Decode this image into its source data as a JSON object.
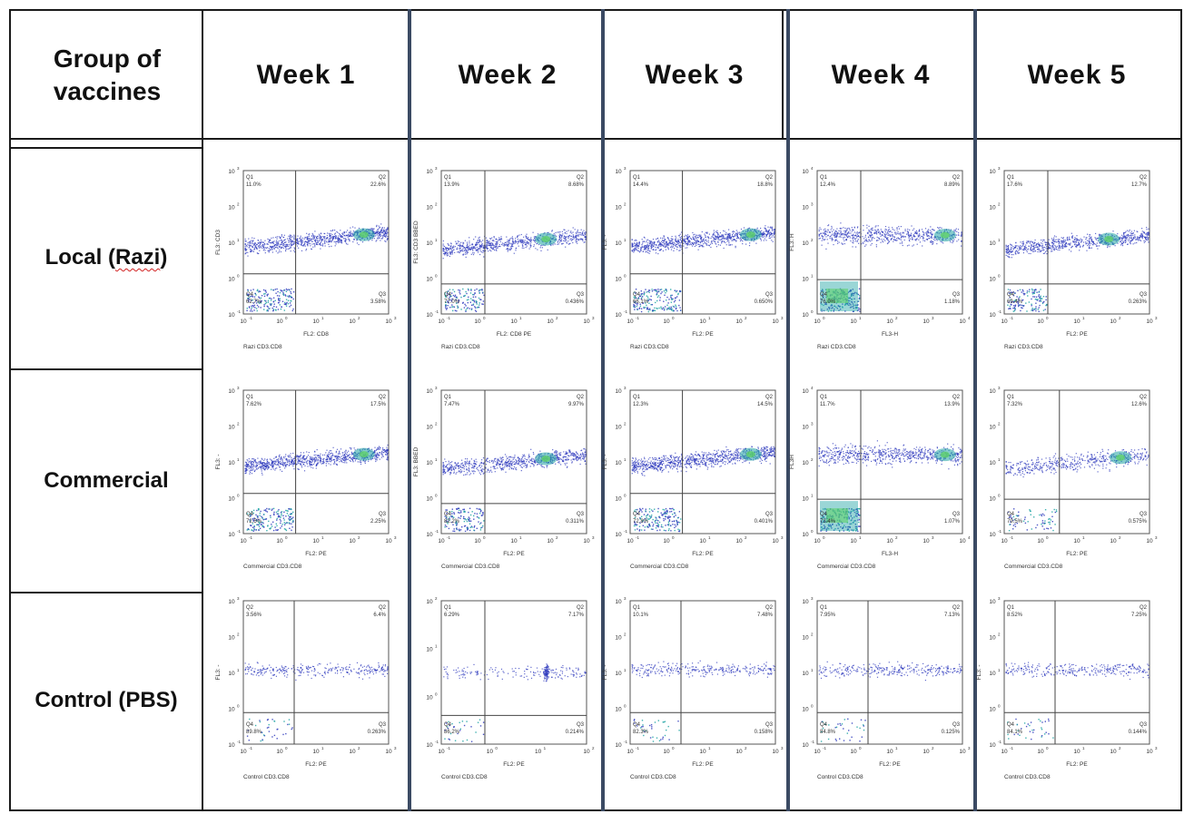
{
  "table": {
    "header": {
      "group_line1": "Group of",
      "group_line2": "vaccines",
      "weeks": [
        "Week 1",
        "Week  2",
        "Week 3",
        "Week  4",
        "Week  5"
      ]
    },
    "rows": [
      {
        "label_prefix": "Local (",
        "label_squiggle": "Razi",
        "label_suffix": ")"
      },
      {
        "label_prefix": "Commercial",
        "label_squiggle": "",
        "label_suffix": ""
      },
      {
        "label_prefix": "Control (PBS)",
        "label_squiggle": "",
        "label_suffix": ""
      }
    ]
  },
  "plots": [
    [
      {
        "q": [
          "Q1",
          "11.0%",
          "Q2",
          "22.6%",
          "Q3",
          "3.58%",
          "Q4",
          "62.7%"
        ],
        "ylabel": "FL3: CD3",
        "xlabel": "FL2: CD8",
        "sample": "Razi CD3.CD8",
        "dec": [
          -1,
          3
        ],
        "profile": "strong"
      },
      {
        "q": [
          "Q1",
          "13.9%",
          "Q2",
          "8.68%",
          "Q3",
          "0.436%",
          "Q4",
          "77.0%"
        ],
        "ylabel": "FL3: CD3 BBED",
        "xlabel": "FL2: CD8 PE",
        "sample": "Razi CD3.CD8",
        "dec": [
          -1,
          3
        ],
        "profile": "medium"
      },
      {
        "q": [
          "Q1",
          "14.4%",
          "Q2",
          "18.8%",
          "Q3",
          "0.650%",
          "Q4",
          "66.1%"
        ],
        "ylabel": "FL3: -",
        "xlabel": "FL2: PE",
        "sample": "Razi CD3.CD8",
        "dec": [
          -1,
          3
        ],
        "profile": "strong"
      },
      {
        "q": [
          "Q1",
          "12.4%",
          "Q2",
          "8.89%",
          "Q3",
          "1.18%",
          "Q4",
          "76.0%"
        ],
        "ylabel": "FL3: H",
        "xlabel": "FL3-H",
        "sample": "Razi CD3.CD8",
        "dec": [
          0,
          4
        ],
        "profile": "w4"
      },
      {
        "q": [
          "Q1",
          "17.6%",
          "Q2",
          "12.7%",
          "Q3",
          "0.263%",
          "Q4",
          "69.4%"
        ],
        "ylabel": "",
        "xlabel": "FL2: PE",
        "sample": "Razi CD3.CD8",
        "dec": [
          -1,
          3
        ],
        "profile": "medium"
      }
    ],
    [
      {
        "q": [
          "Q1",
          "7.62%",
          "Q2",
          "17.5%",
          "Q3",
          "2.25%",
          "Q4",
          "72.5%"
        ],
        "ylabel": "FL3: -",
        "xlabel": "FL2: PE",
        "sample": "Commercial CD3.CD8",
        "dec": [
          -1,
          3
        ],
        "profile": "strong"
      },
      {
        "q": [
          "Q1",
          "7.47%",
          "Q2",
          "9.97%",
          "Q3",
          "0.311%",
          "Q4",
          "82.2%"
        ],
        "ylabel": "FL3: BBED",
        "xlabel": "FL2: PE",
        "sample": "Commercial CD3.CD8",
        "dec": [
          -1,
          3
        ],
        "profile": "medium"
      },
      {
        "q": [
          "Q1",
          "12.3%",
          "Q2",
          "14.5%",
          "Q3",
          "0.401%",
          "Q4",
          "72.8%"
        ],
        "ylabel": "FL3: -",
        "xlabel": "FL2: PE",
        "sample": "Commercial CD3.CD8",
        "dec": [
          -1,
          3
        ],
        "profile": "strong"
      },
      {
        "q": [
          "Q1",
          "11.7%",
          "Q2",
          "13.9%",
          "Q3",
          "1.07%",
          "Q4",
          "73.4%"
        ],
        "ylabel": "FL3H",
        "xlabel": "FL3-H",
        "sample": "Commercial CD3.CD8",
        "dec": [
          0,
          4
        ],
        "profile": "w4"
      },
      {
        "q": [
          "Q1",
          "7.32%",
          "Q2",
          "12.6%",
          "Q3",
          "0.575%",
          "Q4",
          "79.5%"
        ],
        "ylabel": "",
        "xlabel": "FL2: PE",
        "sample": "Commercial CD3.CD8",
        "dec": [
          -1,
          3
        ],
        "profile": "light"
      }
    ],
    [
      {
        "q": [
          "Q2",
          "3.56%",
          "Q2",
          "6.4%",
          "Q3",
          "0.263%",
          "Q4",
          "89.8%"
        ],
        "ylabel": "FL3: -",
        "xlabel": "FL2: PE",
        "sample": "Control CD3.CD8",
        "dec": [
          -1,
          3
        ],
        "profile": "sparse"
      },
      {
        "q": [
          "Q1",
          "6.29%",
          "Q2",
          "7.17%",
          "Q3",
          "0.214%",
          "Q4",
          "86.2%"
        ],
        "ylabel": "",
        "xlabel": "FL2: PE",
        "sample": "Control CD3.CD8",
        "dec": [
          -1,
          2
        ],
        "profile": "cluster"
      },
      {
        "q": [
          "Q1",
          "10.1%",
          "Q2",
          "7.48%",
          "Q3",
          "0.158%",
          "Q4",
          "82.3%"
        ],
        "ylabel": "FL3: -",
        "xlabel": "FL2: PE",
        "sample": "Control CD3.CD8",
        "dec": [
          -1,
          3
        ],
        "profile": "sparse"
      },
      {
        "q": [
          "Q1",
          "7.95%",
          "Q2",
          "7.13%",
          "Q3",
          "0.125%",
          "Q4",
          "84.8%"
        ],
        "ylabel": "",
        "xlabel": "FL2: PE",
        "sample": "Control CD3.CD8",
        "dec": [
          -1,
          3
        ],
        "profile": "sparse"
      },
      {
        "q": [
          "Q1",
          "8.52%",
          "Q2",
          "7.25%",
          "Q3",
          "0.144%",
          "Q4",
          "84.1%"
        ],
        "ylabel": "FL3: -",
        "xlabel": "FL2: PE",
        "sample": "Control CD3.CD8",
        "dec": [
          -1,
          3
        ],
        "profile": "sparse"
      }
    ]
  ],
  "colors": {
    "dots": "#2f3bbd",
    "dense": "#1fa3a3",
    "hot": "#5fd06a",
    "grid": "#444444",
    "divider": "#3b4a63"
  }
}
